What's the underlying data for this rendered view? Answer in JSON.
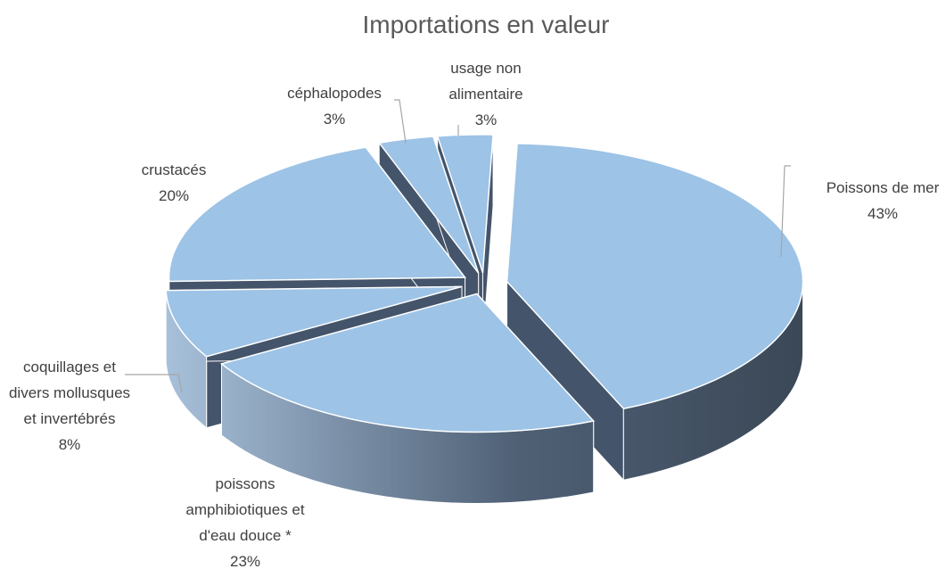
{
  "chart_data": {
    "type": "pie3d",
    "title": "Importations en valeur",
    "categories": [
      "Poissons de mer",
      "poissons amphibiotiques et d'eau douce *",
      "coquillages et divers mollusques et invertébrés",
      "crustacés",
      "céphalopodes",
      "usage non alimentaire"
    ],
    "values": [
      43,
      23,
      8,
      20,
      3,
      3
    ],
    "value_labels": [
      "43%",
      "23%",
      "8%",
      "20%",
      "3%",
      "3%"
    ],
    "color": "#9dc3e6",
    "side_color": "#44546a"
  }
}
